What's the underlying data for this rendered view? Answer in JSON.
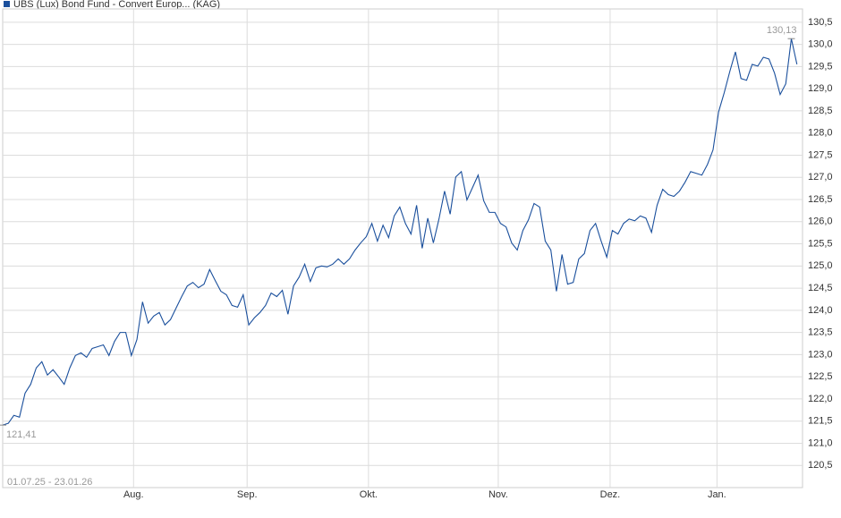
{
  "chart_data": {
    "type": "line",
    "date_range": "01.07.25 - 23.01.26",
    "series": [
      {
        "name": "UBS (Lux) Bond Fund - Convert Europ... (KAG)",
        "color": "#1a4f9c",
        "values": [
          121.41,
          121.45,
          121.63,
          121.59,
          122.13,
          122.33,
          122.7,
          122.84,
          122.54,
          122.66,
          122.5,
          122.33,
          122.7,
          122.98,
          123.04,
          122.94,
          123.14,
          123.18,
          123.22,
          122.98,
          123.3,
          123.5,
          123.5,
          122.98,
          123.34,
          124.19,
          123.71,
          123.87,
          123.95,
          123.67,
          123.79,
          124.05,
          124.31,
          124.55,
          124.63,
          124.51,
          124.59,
          124.92,
          124.67,
          124.43,
          124.35,
          124.11,
          124.07,
          124.35,
          123.67,
          123.83,
          123.95,
          124.11,
          124.39,
          124.31,
          124.45,
          123.91,
          124.55,
          124.75,
          125.04,
          124.65,
          124.96,
          125.0,
          124.98,
          125.04,
          125.16,
          125.04,
          125.16,
          125.36,
          125.52,
          125.66,
          125.96,
          125.56,
          125.92,
          125.64,
          126.13,
          126.33,
          125.96,
          125.72,
          126.37,
          125.4,
          126.08,
          125.52,
          126.06,
          126.69,
          126.17,
          127.01,
          127.13,
          126.49,
          126.77,
          127.05,
          126.47,
          126.21,
          126.21,
          125.96,
          125.88,
          125.52,
          125.36,
          125.8,
          126.04,
          126.41,
          126.33,
          125.56,
          125.36,
          124.43,
          125.26,
          124.59,
          124.63,
          125.16,
          125.28,
          125.8,
          125.96,
          125.56,
          125.2,
          125.8,
          125.72,
          125.96,
          126.06,
          126.02,
          126.13,
          126.08,
          125.76,
          126.37,
          126.73,
          126.61,
          126.57,
          126.69,
          126.89,
          127.13,
          127.09,
          127.05,
          127.29,
          127.62,
          128.48,
          128.91,
          129.39,
          129.83,
          129.23,
          129.19,
          129.55,
          129.51,
          129.71,
          129.67,
          129.35,
          128.87,
          129.11,
          130.13,
          129.55
        ],
        "value_labels": [
          "121,41",
          null,
          null,
          null,
          null,
          null,
          null,
          null,
          null,
          null,
          null,
          null,
          null,
          null,
          null,
          null,
          null,
          null,
          null,
          null,
          null,
          null,
          null,
          null,
          null,
          null,
          null,
          null,
          null,
          null,
          null,
          null,
          null,
          null,
          null,
          null,
          null,
          null,
          null,
          null,
          null,
          null,
          null,
          null,
          null,
          null,
          null,
          null,
          null,
          null,
          null,
          null,
          null,
          null,
          null,
          null,
          null,
          null,
          null,
          null,
          null,
          null,
          null,
          null,
          null,
          null,
          null,
          null,
          null,
          null,
          null,
          null,
          null,
          null,
          null,
          null,
          null,
          null,
          null,
          null,
          null,
          null,
          null,
          null,
          null,
          null,
          null,
          null,
          null,
          null,
          null,
          null,
          null,
          null,
          null,
          null,
          null,
          null,
          null,
          null,
          null,
          null,
          null,
          null,
          null,
          null,
          null,
          null,
          null,
          null,
          null,
          null,
          null,
          null,
          null,
          null,
          null,
          null,
          null,
          null,
          null,
          null,
          null,
          null,
          null,
          null,
          null,
          null,
          null,
          null,
          null,
          null,
          null,
          null,
          null,
          null,
          null,
          null,
          null,
          null,
          null,
          "130,13",
          null
        ]
      }
    ],
    "xlim": [
      0,
      143
    ],
    "xticks": [
      {
        "value": 23.4,
        "label": "Aug."
      },
      {
        "value": 43.7,
        "label": "Sep."
      },
      {
        "value": 65.4,
        "label": "Okt."
      },
      {
        "value": 88.6,
        "label": "Nov."
      },
      {
        "value": 108.6,
        "label": "Dez."
      },
      {
        "value": 127.7,
        "label": "Jan."
      }
    ],
    "ylim": [
      120.0,
      130.8
    ],
    "yticks": [
      {
        "value": 120.5,
        "label": "120,5"
      },
      {
        "value": 121,
        "label": "121,0"
      },
      {
        "value": 121.5,
        "label": "121,5"
      },
      {
        "value": 122,
        "label": "122,0"
      },
      {
        "value": 122.5,
        "label": "122,5"
      },
      {
        "value": 123,
        "label": "123,0"
      },
      {
        "value": 123.5,
        "label": "123,5"
      },
      {
        "value": 124,
        "label": "124,0"
      },
      {
        "value": 124.5,
        "label": "124,5"
      },
      {
        "value": 125,
        "label": "125,0"
      },
      {
        "value": 125.5,
        "label": "125,5"
      },
      {
        "value": 126,
        "label": "126,0"
      },
      {
        "value": 126.5,
        "label": "126,5"
      },
      {
        "value": 127,
        "label": "127,0"
      },
      {
        "value": 127.5,
        "label": "127,5"
      },
      {
        "value": 128,
        "label": "128,0"
      },
      {
        "value": 128.5,
        "label": "128,5"
      },
      {
        "value": 129,
        "label": "129,0"
      },
      {
        "value": 129.5,
        "label": "129,5"
      },
      {
        "value": 130,
        "label": "130,0"
      },
      {
        "value": 130.5,
        "label": "130,5"
      }
    ],
    "grid": true
  }
}
